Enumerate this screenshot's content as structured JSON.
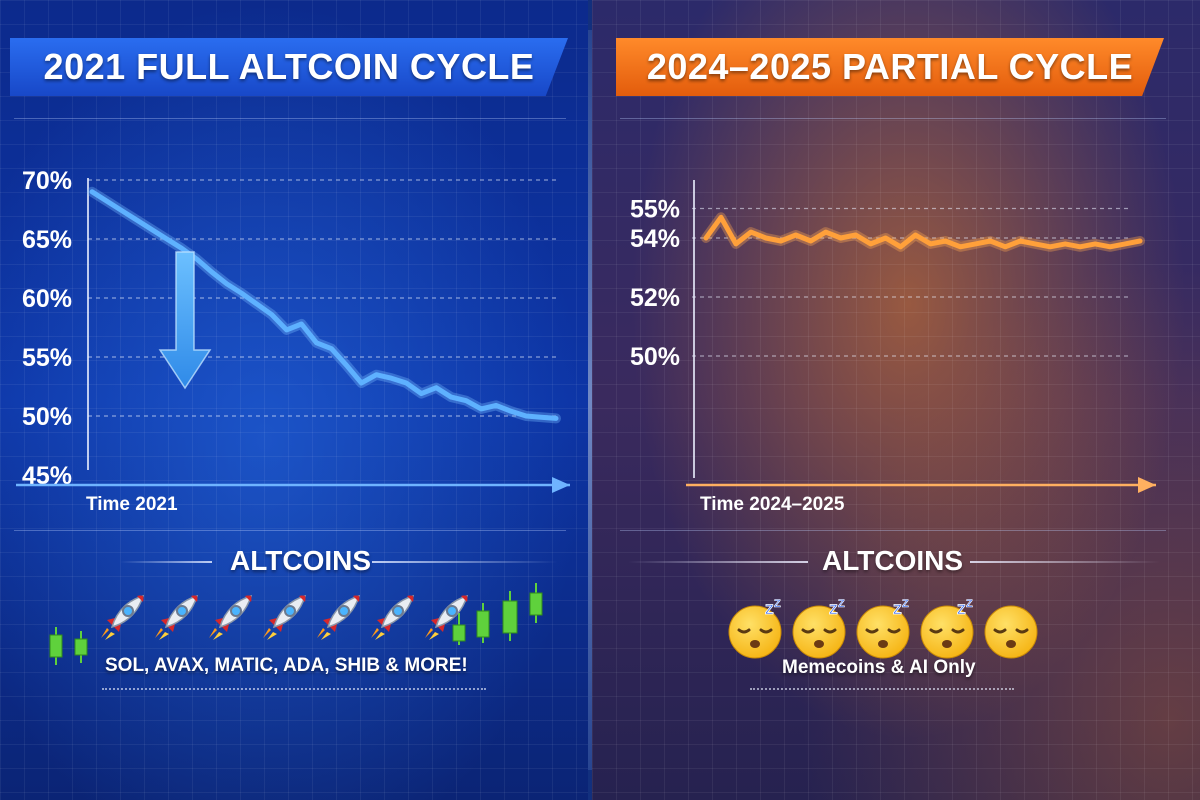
{
  "left_panel": {
    "title": "2021 FULL ALTCOIN CYCLE",
    "section_title": "ALTCOINS",
    "caption": "SOL, AVAX, MATIC, ADA, SHIB & MORE!",
    "accent": "#2a6df0",
    "line_color": "#5eb1ff",
    "arrow_color": "#4aa8ff",
    "rocket_icons": [
      "rocket-icon",
      "rocket-icon",
      "rocket-icon",
      "rocket-icon",
      "rocket-icon",
      "rocket-icon",
      "rocket-icon"
    ],
    "candle_color": "#5fd13c"
  },
  "right_panel": {
    "title": "2024–2025 PARTIAL CYCLE",
    "section_title": "ALTCOINS",
    "caption": "Memecoins & AI Only",
    "accent": "#ff7a1a",
    "line_color": "#ffa03a",
    "sleepy_icons": [
      "sleeping-face-icon",
      "sleeping-face-icon",
      "sleeping-face-icon",
      "sleeping-face-icon",
      "sleepy-face-icon"
    ]
  },
  "chart_data": [
    {
      "type": "line",
      "title": "2021 FULL ALTCOIN CYCLE",
      "xlabel": "Time 2021",
      "ylabel": "",
      "y_ticks": [
        "70%",
        "65%",
        "60%",
        "55%",
        "50%",
        "45%"
      ],
      "tick_values": [
        70,
        65,
        60,
        55,
        50,
        45
      ],
      "ylim": [
        45,
        70
      ],
      "grid": true,
      "series": [
        {
          "values": [
            69,
            68.2,
            67.4,
            66.6,
            65.8,
            65.0,
            64.2,
            63.3,
            62.2,
            61.2,
            60.4,
            59.5,
            58.6,
            57.3,
            57.8,
            56.2,
            55.7,
            54.3,
            52.8,
            53.5,
            53.2,
            52.8,
            51.9,
            52.4,
            51.6,
            51.3,
            50.6,
            50.9,
            50.4,
            50.0,
            49.9,
            49.8
          ]
        }
      ]
    },
    {
      "type": "line",
      "title": "2024–2025 PARTIAL CYCLE",
      "xlabel": "Time 2024–2025",
      "ylabel": "",
      "y_ticks": [
        "55%",
        "54%",
        "52%",
        "50%"
      ],
      "tick_values": [
        55,
        54,
        52,
        50
      ],
      "grid": true,
      "series": [
        {
          "values": [
            54.0,
            54.7,
            53.8,
            54.2,
            54.0,
            53.9,
            54.1,
            53.9,
            54.2,
            54.0,
            54.1,
            53.8,
            54.0,
            53.7,
            54.1,
            53.8,
            53.9,
            53.7,
            53.8,
            53.9,
            53.7,
            53.9,
            53.8,
            53.7,
            53.8,
            53.7,
            53.8,
            53.7,
            53.8,
            53.9
          ]
        }
      ]
    }
  ]
}
